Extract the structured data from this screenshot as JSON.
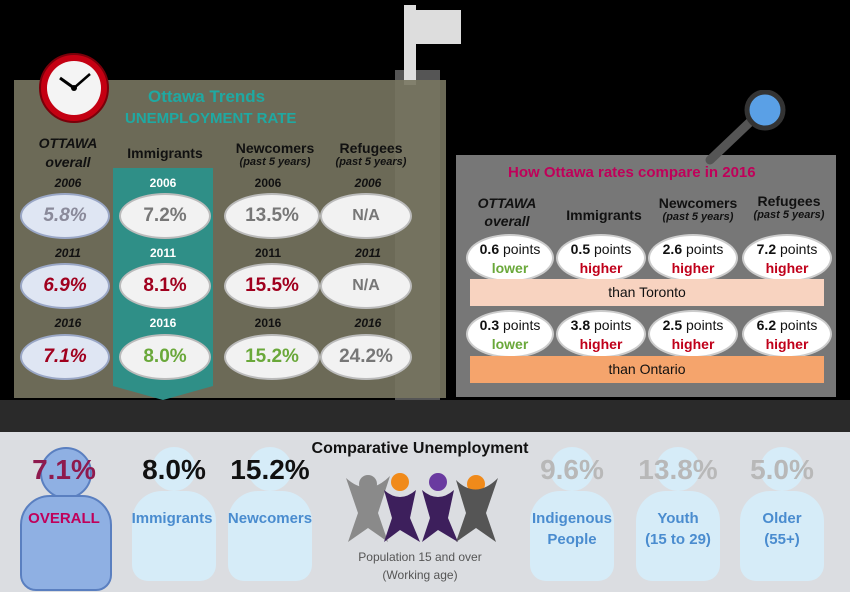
{
  "trends": {
    "title": "Ottawa Trends",
    "subtitle": "UNEMPLOYMENT RATE",
    "columns": [
      {
        "label_line1": "OTTAWA",
        "label_line2": "overall",
        "note": ""
      },
      {
        "label_line1": "Immigrants",
        "label_line2": "",
        "note": ""
      },
      {
        "label_line1": "Newcomers",
        "label_line2": "",
        "note": "(past 5 years)"
      },
      {
        "label_line1": "Refugees",
        "label_line2": "",
        "note": "(past 5 years)"
      }
    ],
    "years": [
      "2006",
      "2011",
      "2016"
    ],
    "values": {
      "ottawa": [
        "5.8%",
        "6.9%",
        "7.1%"
      ],
      "immigrants": [
        "7.2%",
        "8.1%",
        "8.0%"
      ],
      "newcomers": [
        "13.5%",
        "15.5%",
        "15.2%"
      ],
      "refugees": [
        "N/A",
        "N/A",
        "24.2%"
      ]
    }
  },
  "compare": {
    "title": "How Ottawa rates compare in 2016",
    "columns": [
      {
        "label_line1": "OTTAWA",
        "label_line2": "overall",
        "note": ""
      },
      {
        "label_line1": "Immigrants",
        "label_line2": "",
        "note": ""
      },
      {
        "label_line1": "Newcomers",
        "label_line2": "",
        "note": "(past 5 years)"
      },
      {
        "label_line1": "Refugees",
        "label_line2": "",
        "note": "(past 5 years)"
      }
    ],
    "toronto": {
      "numbers": [
        "0.6",
        "0.5",
        "2.6",
        "7.2"
      ],
      "unit": "points",
      "directions": [
        "lower",
        "higher",
        "higher",
        "higher"
      ],
      "label": "than Toronto"
    },
    "ontario": {
      "numbers": [
        "0.3",
        "3.8",
        "2.5",
        "6.2"
      ],
      "unit": "points",
      "directions": [
        "lower",
        "higher",
        "higher",
        "higher"
      ],
      "label": "than Ontario"
    }
  },
  "comparative": {
    "title": "Comparative Unemployment",
    "groups": [
      {
        "value": "7.1%",
        "label": "OVERALL",
        "label2": ""
      },
      {
        "value": "8.0%",
        "label": "Immigrants",
        "label2": ""
      },
      {
        "value": "15.2%",
        "label": "Newcomers",
        "label2": ""
      },
      {
        "value": "9.6%",
        "label": "Indigenous",
        "label2": "People"
      },
      {
        "value": "13.8%",
        "label": "Youth",
        "label2": "(15 to 29)"
      },
      {
        "value": "5.0%",
        "label": "Older",
        "label2": "(55+)"
      }
    ],
    "population_note": "Population 15 and over",
    "population_note2": "(Working age)"
  },
  "colors": {
    "dark_red": "#a0001e",
    "teal": "#2f8f87",
    "green": "#6aa83a",
    "magenta": "#c0005a",
    "blue_label": "#4a8ccf",
    "grey_stat": "#b8b8b8"
  },
  "icons": [
    "clock-icon",
    "magnifying-glass-icon",
    "people-logo-icon"
  ]
}
